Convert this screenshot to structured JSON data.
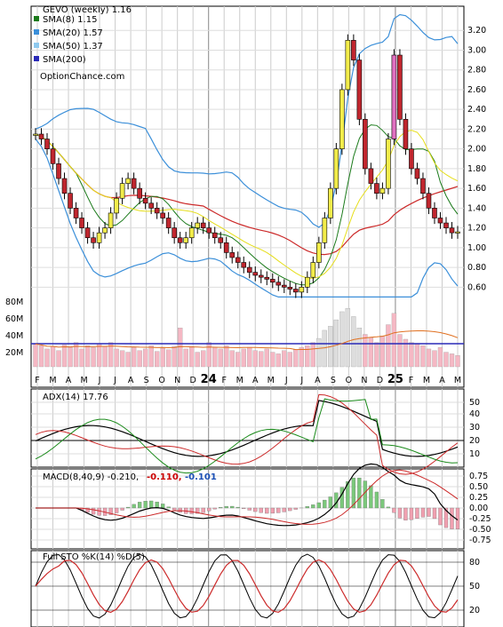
{
  "chart_data": {
    "type": "candlestick",
    "title": "GEVO (weekly) 1.16",
    "watermark": "OptionChance.com",
    "legend": [
      {
        "label": "SMA(8) 1.15",
        "color": "#1a7a1a"
      },
      {
        "label": "SMA(20) 1.57",
        "color": "#3b8fd9"
      },
      {
        "label": "SMA(50) 1.37",
        "color": "#8ec9ee"
      },
      {
        "label": "SMA(200)",
        "color": "#2a2ab8"
      }
    ],
    "x_ticks": [
      "F",
      "M",
      "A",
      "M",
      "J",
      "J",
      "A",
      "S",
      "O",
      "N",
      "D",
      "24",
      "F",
      "M",
      "A",
      "M",
      "J",
      "J",
      "A",
      "S",
      "O",
      "N",
      "D",
      "25",
      "F",
      "M",
      "A",
      "M"
    ],
    "price_axis": {
      "ticks": [
        "3.20",
        "3.00",
        "2.80",
        "2.60",
        "2.40",
        "2.20",
        "2.00",
        "1.80",
        "1.60",
        "1.40",
        "1.20",
        "1.00",
        "0.80",
        "0.60"
      ],
      "ylim": [
        0.45,
        3.4
      ]
    },
    "volume_axis": {
      "ticks": [
        "80M",
        "60M",
        "40M",
        "20M"
      ]
    },
    "colors": {
      "up": "#f2ec4a",
      "down": "#c0262e",
      "doji": "#e070c0",
      "sma8": "#1a7a1a",
      "sma20": "#3b8fd9",
      "sma50": "#8ec9ee",
      "sma200": "#2a2ab8",
      "bb": "#cc2a2a",
      "bbYellow": "#e6de1a",
      "vol": "#f5b8c4"
    },
    "adx": {
      "label": "ADX(14) 17.76",
      "ticks": [
        "50",
        "40",
        "30",
        "20",
        "10"
      ]
    },
    "macd": {
      "label": "MACD(8,40,9) -0.210,",
      "v1": "-0.110,",
      "v2": "-0.101",
      "ticks": [
        "0.75",
        "0.50",
        "0.25",
        "0.00",
        "-0.25",
        "-0.50",
        "-0.75"
      ]
    },
    "sto": {
      "label": "Full STO %K(14) %D(5)",
      "ticks": [
        "80",
        "50",
        "20"
      ]
    },
    "closes": [
      2.15,
      2.1,
      2.0,
      1.85,
      1.7,
      1.55,
      1.4,
      1.3,
      1.2,
      1.1,
      1.05,
      1.15,
      1.2,
      1.35,
      1.5,
      1.65,
      1.7,
      1.6,
      1.5,
      1.45,
      1.4,
      1.35,
      1.3,
      1.2,
      1.1,
      1.05,
      1.1,
      1.2,
      1.25,
      1.2,
      1.15,
      1.1,
      1.05,
      0.95,
      0.9,
      0.85,
      0.8,
      0.75,
      0.72,
      0.7,
      0.68,
      0.65,
      0.62,
      0.6,
      0.58,
      0.55,
      0.6,
      0.7,
      0.85,
      1.05,
      1.3,
      1.6,
      2.0,
      2.6,
      3.1,
      2.9,
      2.3,
      1.8,
      1.65,
      1.55,
      1.6,
      2.1,
      2.95,
      2.3,
      2.0,
      1.8,
      1.7,
      1.55,
      1.4,
      1.3,
      1.25,
      1.2,
      1.15,
      1.16
    ],
    "volumes": [
      28,
      26,
      22,
      25,
      20,
      27,
      24,
      30,
      22,
      26,
      24,
      28,
      25,
      30,
      22,
      20,
      18,
      24,
      20,
      22,
      26,
      19,
      23,
      21,
      25,
      48,
      22,
      25,
      18,
      20,
      30,
      24,
      22,
      26,
      20,
      18,
      22,
      24,
      20,
      19,
      22,
      18,
      16,
      20,
      18,
      21,
      24,
      26,
      30,
      35,
      45,
      50,
      58,
      68,
      72,
      62,
      48,
      40,
      36,
      30,
      38,
      52,
      66,
      40,
      34,
      30,
      28,
      26,
      22,
      20,
      24,
      18,
      16,
      14
    ]
  }
}
